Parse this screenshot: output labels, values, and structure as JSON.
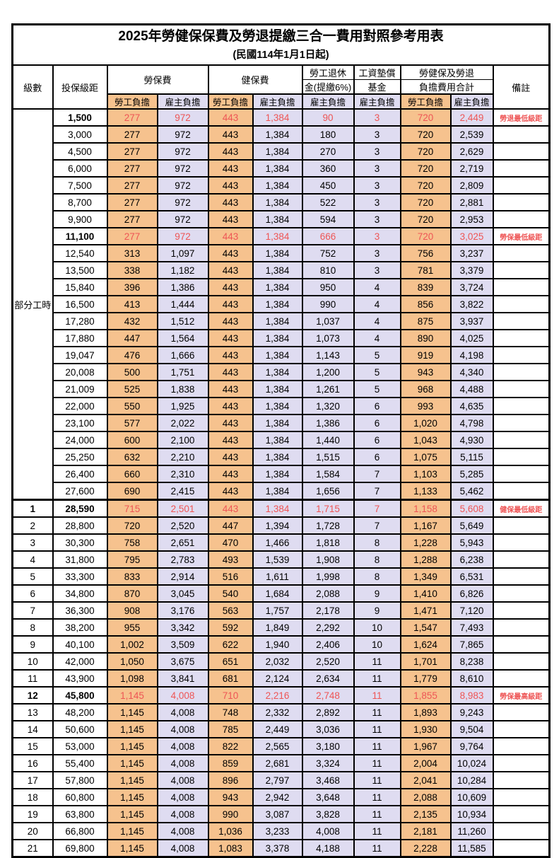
{
  "table": {
    "title": "2025年勞健保保費及勞退提繳三合一費用對照參考用表",
    "subtitle": "(民國114年1月1日起)",
    "headers": {
      "level": "級數",
      "bracket": "投保級距",
      "labor_ins": "勞保費",
      "health_ins": "健保費",
      "pension_line1": "勞工退休",
      "pension_line2": "金(提繳6%)",
      "wage_fund_line1": "工資墊償",
      "wage_fund_line2": "基金",
      "total_line1": "勞健保及勞退",
      "total_line2": "負擔費用合計",
      "remark": "備註",
      "worker": "勞工負擔",
      "employer": "雇主負擔"
    },
    "part_time_label": "部分工時",
    "colors": {
      "worker_bg": "#f6c28e",
      "employer_bg": "#dfdcf1",
      "highlight_red": "#ee5555",
      "border": "#000000"
    },
    "rows": [
      {
        "level": "",
        "bracket": "1,500",
        "cells": [
          "277",
          "972",
          "443",
          "1,384",
          "90",
          "3",
          "720",
          "2,449"
        ],
        "remark": "勞退最低級距",
        "red": true
      },
      {
        "level": "",
        "bracket": "3,000",
        "cells": [
          "277",
          "972",
          "443",
          "1,384",
          "180",
          "3",
          "720",
          "2,539"
        ],
        "remark": "",
        "red": false
      },
      {
        "level": "",
        "bracket": "4,500",
        "cells": [
          "277",
          "972",
          "443",
          "1,384",
          "270",
          "3",
          "720",
          "2,629"
        ],
        "remark": "",
        "red": false
      },
      {
        "level": "",
        "bracket": "6,000",
        "cells": [
          "277",
          "972",
          "443",
          "1,384",
          "360",
          "3",
          "720",
          "2,719"
        ],
        "remark": "",
        "red": false
      },
      {
        "level": "",
        "bracket": "7,500",
        "cells": [
          "277",
          "972",
          "443",
          "1,384",
          "450",
          "3",
          "720",
          "2,809"
        ],
        "remark": "",
        "red": false
      },
      {
        "level": "",
        "bracket": "8,700",
        "cells": [
          "277",
          "972",
          "443",
          "1,384",
          "522",
          "3",
          "720",
          "2,881"
        ],
        "remark": "",
        "red": false
      },
      {
        "level": "",
        "bracket": "9,900",
        "cells": [
          "277",
          "972",
          "443",
          "1,384",
          "594",
          "3",
          "720",
          "2,953"
        ],
        "remark": "",
        "red": false
      },
      {
        "level": "",
        "bracket": "11,100",
        "cells": [
          "277",
          "972",
          "443",
          "1,384",
          "666",
          "3",
          "720",
          "3,025"
        ],
        "remark": "勞保最低級距",
        "red": true
      },
      {
        "level": "",
        "bracket": "12,540",
        "cells": [
          "313",
          "1,097",
          "443",
          "1,384",
          "752",
          "3",
          "756",
          "3,237"
        ],
        "remark": "",
        "red": false
      },
      {
        "level": "",
        "bracket": "13,500",
        "cells": [
          "338",
          "1,182",
          "443",
          "1,384",
          "810",
          "3",
          "781",
          "3,379"
        ],
        "remark": "",
        "red": false
      },
      {
        "level": "",
        "bracket": "15,840",
        "cells": [
          "396",
          "1,386",
          "443",
          "1,384",
          "950",
          "4",
          "839",
          "3,724"
        ],
        "remark": "",
        "red": false
      },
      {
        "level": "",
        "bracket": "16,500",
        "cells": [
          "413",
          "1,444",
          "443",
          "1,384",
          "990",
          "4",
          "856",
          "3,822"
        ],
        "remark": "",
        "red": false
      },
      {
        "level": "",
        "bracket": "17,280",
        "cells": [
          "432",
          "1,512",
          "443",
          "1,384",
          "1,037",
          "4",
          "875",
          "3,937"
        ],
        "remark": "",
        "red": false
      },
      {
        "level": "",
        "bracket": "17,880",
        "cells": [
          "447",
          "1,564",
          "443",
          "1,384",
          "1,073",
          "4",
          "890",
          "4,025"
        ],
        "remark": "",
        "red": false
      },
      {
        "level": "",
        "bracket": "19,047",
        "cells": [
          "476",
          "1,666",
          "443",
          "1,384",
          "1,143",
          "5",
          "919",
          "4,198"
        ],
        "remark": "",
        "red": false
      },
      {
        "level": "",
        "bracket": "20,008",
        "cells": [
          "500",
          "1,751",
          "443",
          "1,384",
          "1,200",
          "5",
          "943",
          "4,340"
        ],
        "remark": "",
        "red": false
      },
      {
        "level": "",
        "bracket": "21,009",
        "cells": [
          "525",
          "1,838",
          "443",
          "1,384",
          "1,261",
          "5",
          "968",
          "4,488"
        ],
        "remark": "",
        "red": false
      },
      {
        "level": "",
        "bracket": "22,000",
        "cells": [
          "550",
          "1,925",
          "443",
          "1,384",
          "1,320",
          "6",
          "993",
          "4,635"
        ],
        "remark": "",
        "red": false
      },
      {
        "level": "",
        "bracket": "23,100",
        "cells": [
          "577",
          "2,022",
          "443",
          "1,384",
          "1,386",
          "6",
          "1,020",
          "4,798"
        ],
        "remark": "",
        "red": false
      },
      {
        "level": "",
        "bracket": "24,000",
        "cells": [
          "600",
          "2,100",
          "443",
          "1,384",
          "1,440",
          "6",
          "1,043",
          "4,930"
        ],
        "remark": "",
        "red": false
      },
      {
        "level": "",
        "bracket": "25,250",
        "cells": [
          "632",
          "2,210",
          "443",
          "1,384",
          "1,515",
          "6",
          "1,075",
          "5,115"
        ],
        "remark": "",
        "red": false
      },
      {
        "level": "",
        "bracket": "26,400",
        "cells": [
          "660",
          "2,310",
          "443",
          "1,384",
          "1,584",
          "7",
          "1,103",
          "5,285"
        ],
        "remark": "",
        "red": false
      },
      {
        "level": "",
        "bracket": "27,600",
        "cells": [
          "690",
          "2,415",
          "443",
          "1,384",
          "1,656",
          "7",
          "1,133",
          "5,462"
        ],
        "remark": "",
        "red": false
      },
      {
        "level": "1",
        "bracket": "28,590",
        "cells": [
          "715",
          "2,501",
          "443",
          "1,384",
          "1,715",
          "7",
          "1,158",
          "5,608"
        ],
        "remark": "健保最低級距",
        "red": true,
        "thick_top": true
      },
      {
        "level": "2",
        "bracket": "28,800",
        "cells": [
          "720",
          "2,520",
          "447",
          "1,394",
          "1,728",
          "7",
          "1,167",
          "5,649"
        ],
        "remark": "",
        "red": false
      },
      {
        "level": "3",
        "bracket": "30,300",
        "cells": [
          "758",
          "2,651",
          "470",
          "1,466",
          "1,818",
          "8",
          "1,228",
          "5,943"
        ],
        "remark": "",
        "red": false
      },
      {
        "level": "4",
        "bracket": "31,800",
        "cells": [
          "795",
          "2,783",
          "493",
          "1,539",
          "1,908",
          "8",
          "1,288",
          "6,238"
        ],
        "remark": "",
        "red": false
      },
      {
        "level": "5",
        "bracket": "33,300",
        "cells": [
          "833",
          "2,914",
          "516",
          "1,611",
          "1,998",
          "8",
          "1,349",
          "6,531"
        ],
        "remark": "",
        "red": false
      },
      {
        "level": "6",
        "bracket": "34,800",
        "cells": [
          "870",
          "3,045",
          "540",
          "1,684",
          "2,088",
          "9",
          "1,410",
          "6,826"
        ],
        "remark": "",
        "red": false
      },
      {
        "level": "7",
        "bracket": "36,300",
        "cells": [
          "908",
          "3,176",
          "563",
          "1,757",
          "2,178",
          "9",
          "1,471",
          "7,120"
        ],
        "remark": "",
        "red": false
      },
      {
        "level": "8",
        "bracket": "38,200",
        "cells": [
          "955",
          "3,342",
          "592",
          "1,849",
          "2,292",
          "10",
          "1,547",
          "7,493"
        ],
        "remark": "",
        "red": false
      },
      {
        "level": "9",
        "bracket": "40,100",
        "cells": [
          "1,002",
          "3,509",
          "622",
          "1,940",
          "2,406",
          "10",
          "1,624",
          "7,865"
        ],
        "remark": "",
        "red": false
      },
      {
        "level": "10",
        "bracket": "42,000",
        "cells": [
          "1,050",
          "3,675",
          "651",
          "2,032",
          "2,520",
          "11",
          "1,701",
          "8,238"
        ],
        "remark": "",
        "red": false
      },
      {
        "level": "11",
        "bracket": "43,900",
        "cells": [
          "1,098",
          "3,841",
          "681",
          "2,124",
          "2,634",
          "11",
          "1,779",
          "8,610"
        ],
        "remark": "",
        "red": false
      },
      {
        "level": "12",
        "bracket": "45,800",
        "cells": [
          "1,145",
          "4,008",
          "710",
          "2,216",
          "2,748",
          "11",
          "1,855",
          "8,983"
        ],
        "remark": "勞保最高級距",
        "red": true
      },
      {
        "level": "13",
        "bracket": "48,200",
        "cells": [
          "1,145",
          "4,008",
          "748",
          "2,332",
          "2,892",
          "11",
          "1,893",
          "9,243"
        ],
        "remark": "",
        "red": false
      },
      {
        "level": "14",
        "bracket": "50,600",
        "cells": [
          "1,145",
          "4,008",
          "785",
          "2,449",
          "3,036",
          "11",
          "1,930",
          "9,504"
        ],
        "remark": "",
        "red": false
      },
      {
        "level": "15",
        "bracket": "53,000",
        "cells": [
          "1,145",
          "4,008",
          "822",
          "2,565",
          "3,180",
          "11",
          "1,967",
          "9,764"
        ],
        "remark": "",
        "red": false
      },
      {
        "level": "16",
        "bracket": "55,400",
        "cells": [
          "1,145",
          "4,008",
          "859",
          "2,681",
          "3,324",
          "11",
          "2,004",
          "10,024"
        ],
        "remark": "",
        "red": false
      },
      {
        "level": "17",
        "bracket": "57,800",
        "cells": [
          "1,145",
          "4,008",
          "896",
          "2,797",
          "3,468",
          "11",
          "2,041",
          "10,284"
        ],
        "remark": "",
        "red": false
      },
      {
        "level": "18",
        "bracket": "60,800",
        "cells": [
          "1,145",
          "4,008",
          "943",
          "2,942",
          "3,648",
          "11",
          "2,088",
          "10,609"
        ],
        "remark": "",
        "red": false
      },
      {
        "level": "19",
        "bracket": "63,800",
        "cells": [
          "1,145",
          "4,008",
          "990",
          "3,087",
          "3,828",
          "11",
          "2,135",
          "10,934"
        ],
        "remark": "",
        "red": false
      },
      {
        "level": "20",
        "bracket": "66,800",
        "cells": [
          "1,145",
          "4,008",
          "1,036",
          "3,233",
          "4,008",
          "11",
          "2,181",
          "11,260"
        ],
        "remark": "",
        "red": false
      },
      {
        "level": "21",
        "bracket": "69,800",
        "cells": [
          "1,145",
          "4,008",
          "1,083",
          "3,378",
          "4,188",
          "11",
          "2,228",
          "11,585"
        ],
        "remark": "",
        "red": false
      }
    ]
  }
}
